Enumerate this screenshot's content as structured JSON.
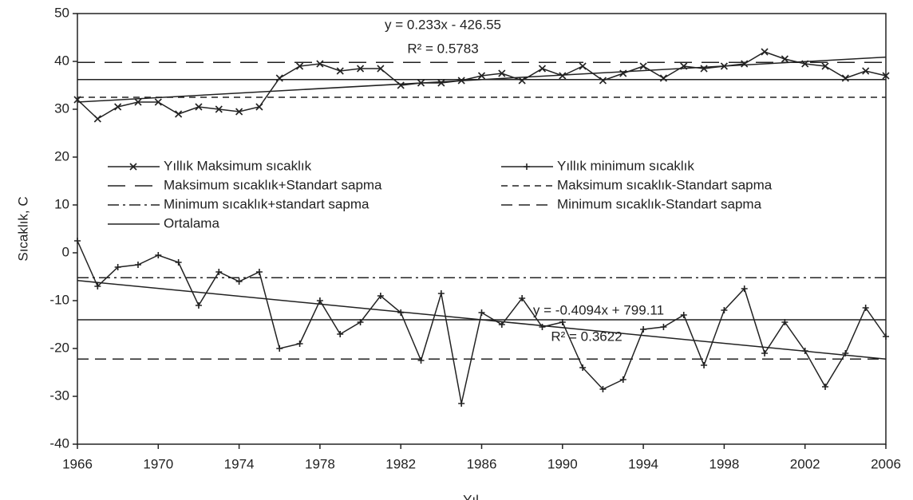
{
  "chart_data": {
    "type": "line",
    "y_label": "Sıcaklık, C",
    "x_label": "Yıl",
    "x": [
      1966,
      1967,
      1968,
      1969,
      1970,
      1971,
      1972,
      1973,
      1974,
      1975,
      1976,
      1977,
      1978,
      1979,
      1980,
      1981,
      1982,
      1983,
      1984,
      1985,
      1986,
      1987,
      1988,
      1989,
      1990,
      1991,
      1992,
      1993,
      1994,
      1995,
      1996,
      1997,
      1998,
      1999,
      2000,
      2001,
      2002,
      2003,
      2004,
      2005,
      2006
    ],
    "series": [
      {
        "name": "Yıllık Maksimum sıcaklık",
        "color": "#222222",
        "marker": "x",
        "values": [
          32,
          28,
          30.5,
          31.5,
          31.5,
          29,
          30.5,
          30,
          29.5,
          30.5,
          36.5,
          39,
          39.5,
          38,
          38.5,
          38.5,
          35,
          35.5,
          35.5,
          36,
          37,
          37.5,
          36,
          38.5,
          37,
          39,
          36,
          37.5,
          39,
          36.5,
          39,
          38.5,
          39,
          39.5,
          42,
          40.5,
          39.5,
          39,
          36.5,
          38,
          37
        ]
      },
      {
        "name": "Yıllık minimum sıcaklık",
        "color": "#222222",
        "marker": "+",
        "values": [
          2.5,
          -7,
          -3,
          -2.5,
          -0.5,
          -2,
          -11,
          -4,
          -6,
          -4,
          -20,
          -19,
          -10,
          -17,
          -14.5,
          -9,
          -12.5,
          -22.5,
          -8.5,
          -31.5,
          -12.5,
          -15,
          -9.5,
          -15.5,
          -14.5,
          -24,
          -28.5,
          -26.5,
          -16,
          -15.5,
          -13,
          -23.5,
          -12,
          -7.5,
          -21,
          -14.5,
          -20.5,
          -28,
          -21,
          -11.5,
          -17.5
        ]
      }
    ],
    "hlines": [
      {
        "name": "Maksimum sıcaklık+Standart sapma",
        "dash": "22 12",
        "values": [
          39.8
        ]
      },
      {
        "name": "Maksimum sıcaklık-Standart sapma",
        "dash": "8 6",
        "values": [
          32.5
        ]
      },
      {
        "name": "Minimum sıcaklık+standart sapma",
        "dash": "14 5 3 5",
        "values": [
          -5.2
        ]
      },
      {
        "name": "Minimum sıcaklık-Standart sapma",
        "dash": "14 8",
        "values": [
          -22.2
        ]
      },
      {
        "name": "Ortalama",
        "dash": "none",
        "values": [
          36.2,
          -14
        ]
      }
    ],
    "trendlines": [
      {
        "equation": "y = 0.233x - 426.55",
        "r2": "R² = 0.5783",
        "x": [
          1966,
          2006
        ],
        "values": [
          31.5,
          40.9
        ]
      },
      {
        "equation": "y = -0.4094x + 799.11",
        "r2": "R² = 0.3622",
        "x": [
          1966,
          2006
        ],
        "values": [
          -5.8,
          -22.2
        ]
      }
    ],
    "xlim": [
      1966,
      2006
    ],
    "xticks": [
      1966,
      1970,
      1974,
      1978,
      1982,
      1986,
      1990,
      1994,
      1998,
      2002,
      2006
    ],
    "ylim": [
      -40,
      50
    ],
    "yticks": [
      -40,
      -30,
      -20,
      -10,
      0,
      10,
      20,
      30,
      40,
      50
    ],
    "grid": false
  }
}
